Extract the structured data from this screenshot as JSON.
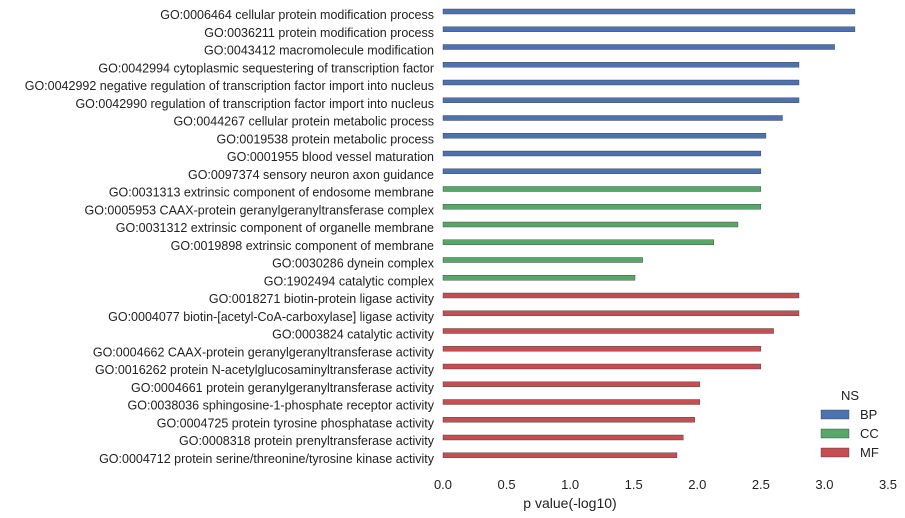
{
  "chart_data": {
    "type": "bar",
    "orientation": "horizontal",
    "xlabel": "p value(-log10)",
    "xlim": [
      0,
      3.5
    ],
    "xticks": [
      "0.0",
      "0.5",
      "1.0",
      "1.5",
      "2.0",
      "2.5",
      "3.0",
      "3.5"
    ],
    "grid": false,
    "legend": {
      "title": "NS",
      "placement": "bottom-right",
      "entries": [
        {
          "name": "BP",
          "color": "#4c72b0"
        },
        {
          "name": "CC",
          "color": "#55a868"
        },
        {
          "name": "MF",
          "color": "#c44e52"
        }
      ]
    },
    "bars": [
      {
        "label": "GO:0006464 cellular protein modification process",
        "value": 3.24,
        "group": "BP"
      },
      {
        "label": "GO:0036211 protein modification process",
        "value": 3.24,
        "group": "BP"
      },
      {
        "label": "GO:0043412 macromolecule modification",
        "value": 3.08,
        "group": "BP"
      },
      {
        "label": "GO:0042994 cytoplasmic sequestering of transcription factor",
        "value": 2.8,
        "group": "BP"
      },
      {
        "label": "GO:0042992 negative regulation of transcription factor import into nucleus",
        "value": 2.8,
        "group": "BP"
      },
      {
        "label": "GO:0042990 regulation of transcription factor import into nucleus",
        "value": 2.8,
        "group": "BP"
      },
      {
        "label": "GO:0044267 cellular protein metabolic process",
        "value": 2.67,
        "group": "BP"
      },
      {
        "label": "GO:0019538 protein metabolic process",
        "value": 2.54,
        "group": "BP"
      },
      {
        "label": "GO:0001955 blood vessel maturation",
        "value": 2.5,
        "group": "BP"
      },
      {
        "label": "GO:0097374 sensory neuron axon guidance",
        "value": 2.5,
        "group": "BP"
      },
      {
        "label": "GO:0031313 extrinsic component of endosome membrane",
        "value": 2.5,
        "group": "CC"
      },
      {
        "label": "GO:0005953 CAAX-protein geranylgeranyltransferase complex",
        "value": 2.5,
        "group": "CC"
      },
      {
        "label": "GO:0031312 extrinsic component of organelle membrane",
        "value": 2.32,
        "group": "CC"
      },
      {
        "label": "GO:0019898 extrinsic component of membrane",
        "value": 2.13,
        "group": "CC"
      },
      {
        "label": "GO:0030286 dynein complex",
        "value": 1.57,
        "group": "CC"
      },
      {
        "label": "GO:1902494 catalytic complex",
        "value": 1.51,
        "group": "CC"
      },
      {
        "label": "GO:0018271 biotin-protein ligase activity",
        "value": 2.8,
        "group": "MF"
      },
      {
        "label": "GO:0004077 biotin-[acetyl-CoA-carboxylase] ligase activity",
        "value": 2.8,
        "group": "MF"
      },
      {
        "label": "GO:0003824 catalytic activity",
        "value": 2.6,
        "group": "MF"
      },
      {
        "label": "GO:0004662 CAAX-protein geranylgeranyltransferase activity",
        "value": 2.5,
        "group": "MF"
      },
      {
        "label": "GO:0016262 protein N-acetylglucosaminyltransferase activity",
        "value": 2.5,
        "group": "MF"
      },
      {
        "label": "GO:0004661 protein geranylgeranyltransferase activity",
        "value": 2.02,
        "group": "MF"
      },
      {
        "label": "GO:0038036 sphingosine-1-phosphate receptor activity",
        "value": 2.02,
        "group": "MF"
      },
      {
        "label": "GO:0004725 protein tyrosine phosphatase activity",
        "value": 1.98,
        "group": "MF"
      },
      {
        "label": "GO:0008318 protein prenyltransferase activity",
        "value": 1.89,
        "group": "MF"
      },
      {
        "label": "GO:0004712 protein serine/threonine/tyrosine kinase activity",
        "value": 1.84,
        "group": "MF"
      }
    ]
  }
}
